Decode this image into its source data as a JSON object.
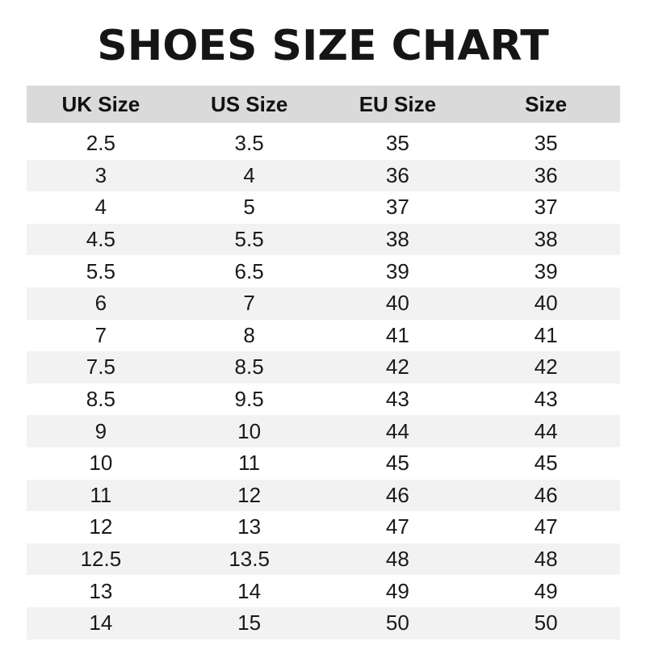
{
  "title": "SHOES SIZE CHART",
  "colors": {
    "header_bg": "#dadada",
    "stripe_bg": "#f2f2f2"
  },
  "table": {
    "headers": [
      "UK Size",
      "US Size",
      "EU Size",
      "Size"
    ],
    "rows": [
      [
        "2.5",
        "3.5",
        "35",
        "35"
      ],
      [
        "3",
        "4",
        "36",
        "36"
      ],
      [
        "4",
        "5",
        "37",
        "37"
      ],
      [
        "4.5",
        "5.5",
        "38",
        "38"
      ],
      [
        "5.5",
        "6.5",
        "39",
        "39"
      ],
      [
        "6",
        "7",
        "40",
        "40"
      ],
      [
        "7",
        "8",
        "41",
        "41"
      ],
      [
        "7.5",
        "8.5",
        "42",
        "42"
      ],
      [
        "8.5",
        "9.5",
        "43",
        "43"
      ],
      [
        "9",
        "10",
        "44",
        "44"
      ],
      [
        "10",
        "11",
        "45",
        "45"
      ],
      [
        "11",
        "12",
        "46",
        "46"
      ],
      [
        "12",
        "13",
        "47",
        "47"
      ],
      [
        "12.5",
        "13.5",
        "48",
        "48"
      ],
      [
        "13",
        "14",
        "49",
        "49"
      ],
      [
        "14",
        "15",
        "50",
        "50"
      ]
    ]
  }
}
